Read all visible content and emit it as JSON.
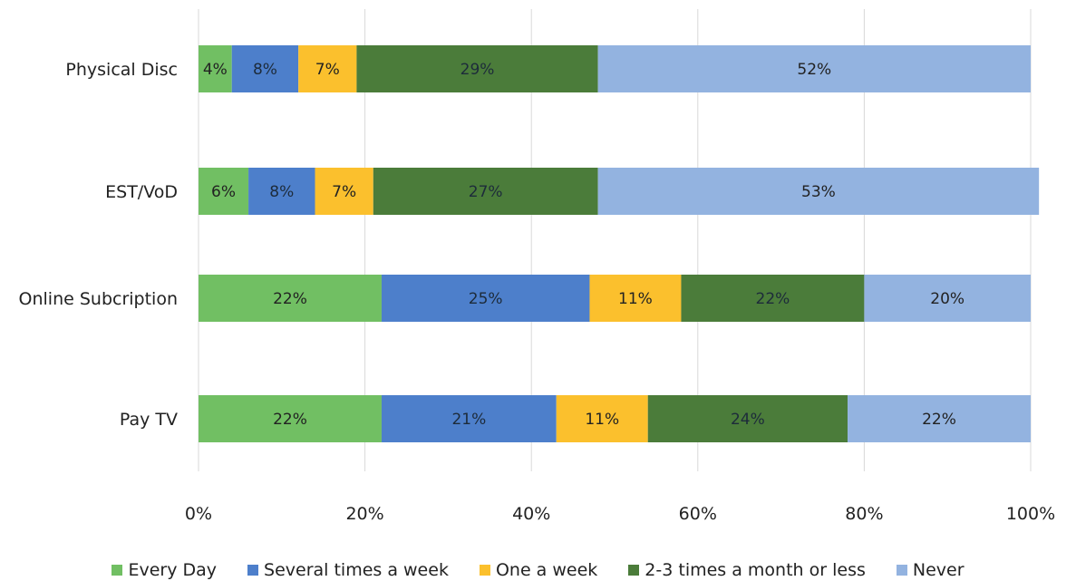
{
  "chart_data": {
    "type": "bar",
    "orientation": "horizontal",
    "stacked": true,
    "categories": [
      "Physical Disc",
      "EST/VoD",
      "Online Subcription",
      "Pay TV"
    ],
    "series": [
      {
        "name": "Every Day",
        "color": "#71bf63",
        "values": [
          4,
          6,
          22,
          22
        ],
        "labels": [
          "4%",
          "6%",
          "22%",
          "22%"
        ]
      },
      {
        "name": "Several times a week",
        "color": "#4d7fcb",
        "values": [
          8,
          8,
          25,
          21
        ],
        "labels": [
          "8%",
          "8%",
          "25%",
          "21%"
        ]
      },
      {
        "name": "One a week",
        "color": "#fbc02d",
        "values": [
          7,
          7,
          11,
          11
        ],
        "labels": [
          "7%",
          "7%",
          "11%",
          "11%"
        ]
      },
      {
        "name": "2-3 times a month or less",
        "color": "#4b7c3a",
        "values": [
          29,
          27,
          22,
          24
        ],
        "labels": [
          "29%",
          "27%",
          "22%",
          "24%"
        ]
      },
      {
        "name": "Never",
        "color": "#93b3e0",
        "values": [
          52,
          53,
          20,
          22
        ],
        "labels": [
          "52%",
          "53%",
          "20%",
          "22%"
        ]
      }
    ],
    "xlim": [
      0,
      100
    ],
    "xticks": [
      "0%",
      "20%",
      "40%",
      "60%",
      "80%",
      "100%"
    ],
    "grid": true,
    "legend_position": "bottom"
  }
}
